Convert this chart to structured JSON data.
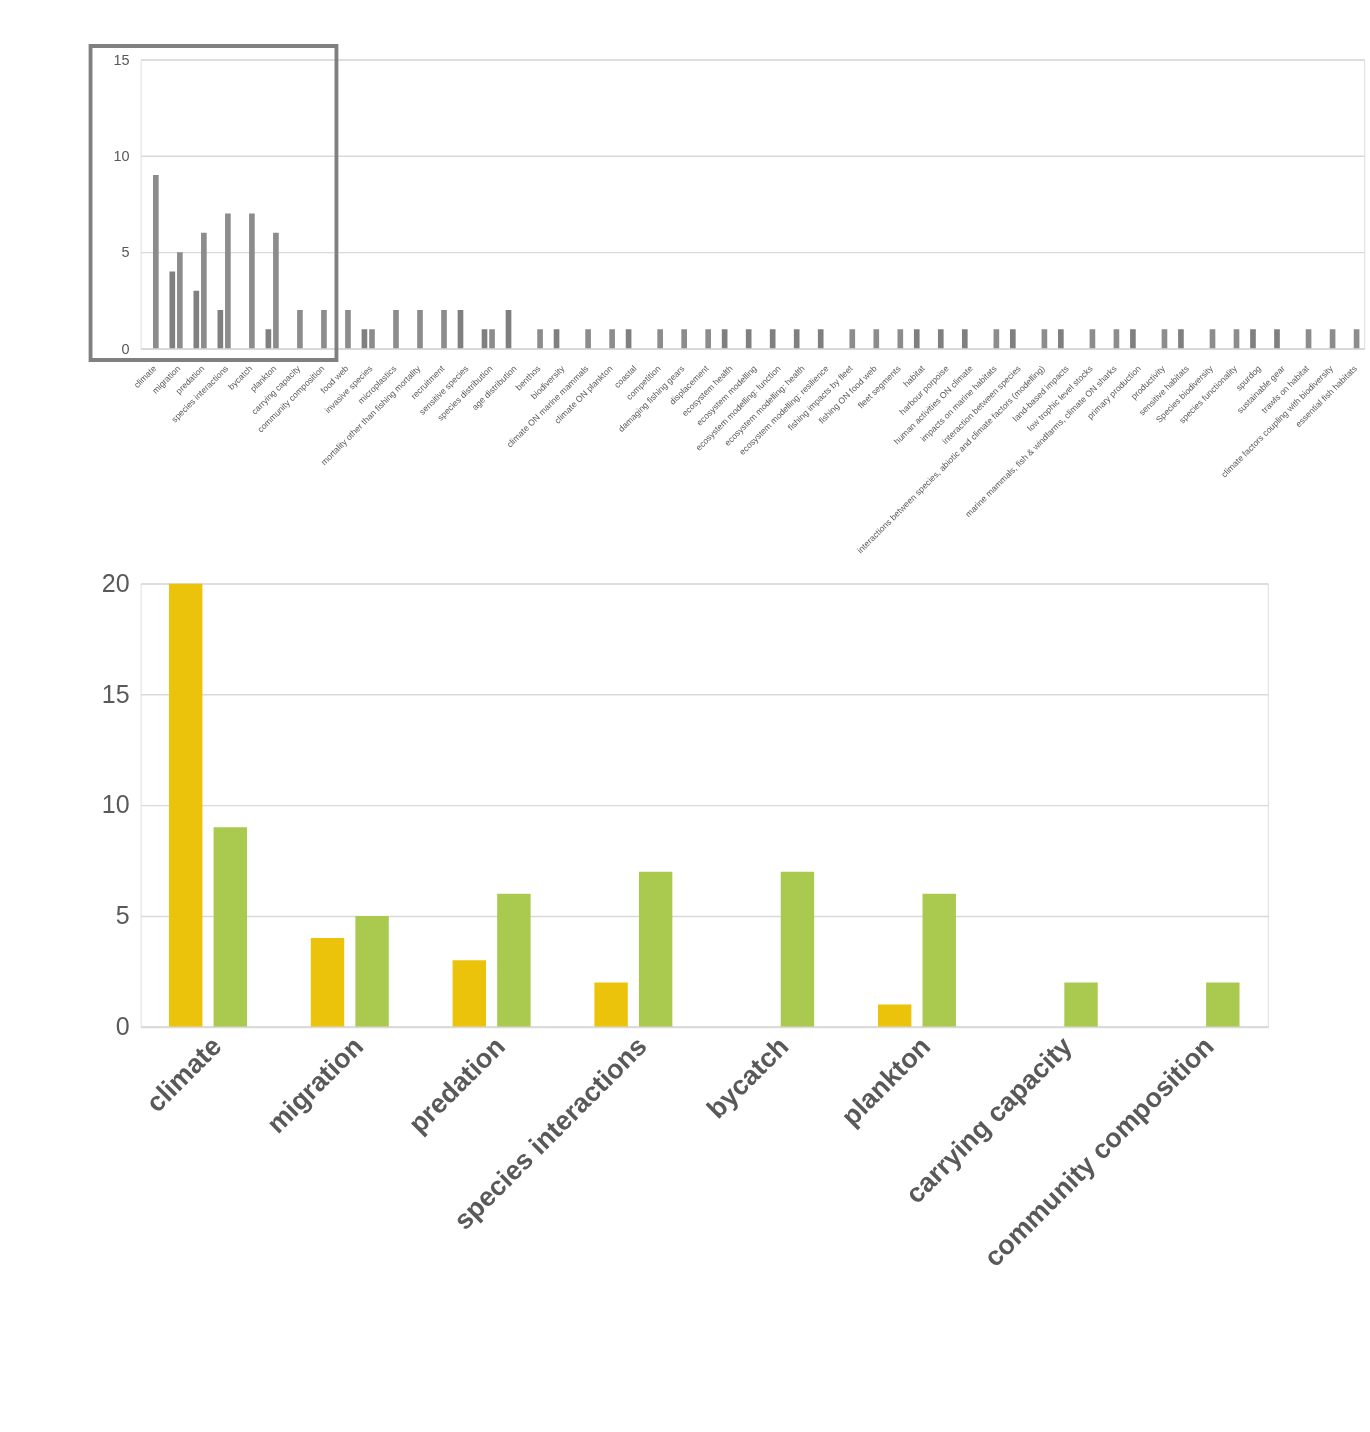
{
  "chart_data": [
    {
      "type": "bar",
      "categories": [
        "climate",
        "migration",
        "predation",
        "species interactions",
        "bycatch",
        "plankton",
        "carrying capacity",
        "community composition",
        "food web",
        "invasive species",
        "microplastics",
        "mortality other than fishing mortality",
        "recruitment",
        "sensitive species",
        "species distribution",
        "age distribution",
        "benthos",
        "biodiversity",
        "climate ON marine mammals",
        "climate ON plankton",
        "coastal",
        "competition",
        "damaging fishing gears",
        "displacement",
        "ecosystem health",
        "ecosystem modelling",
        "ecosystem modelling: function",
        "ecosystem modelling: health",
        "ecosystem modelling: resilience",
        "fishing impacts by fleet",
        "fishing ON food web",
        "fleet segments",
        "habitat",
        "harbour porpoise",
        "human activities ON climate",
        "impacts on marine habitats",
        "interaction between species",
        "interactions between species, abiotic and climate factors (modelling)",
        "land-based impacts",
        "low trophic level stocks",
        "marine mammals, fish & windfarms, climate ON sharks",
        "primary production",
        "productivity",
        "sensitive habitats",
        "Species biodiversity",
        "species functionality",
        "spurdog",
        "sustainable gear",
        "trawls on habitat",
        "climate factors coupling with biodiversity",
        "essential fish habitats"
      ],
      "series": [
        {
          "color": "#7f7f7f",
          "values": [
            null,
            4,
            3,
            2,
            null,
            1,
            null,
            null,
            null,
            1,
            null,
            null,
            null,
            2,
            1,
            2,
            null,
            1,
            null,
            null,
            1,
            null,
            null,
            null,
            1,
            1,
            1,
            1,
            1,
            null,
            null,
            null,
            1,
            1,
            1,
            null,
            1,
            null,
            1,
            null,
            null,
            1,
            null,
            1,
            null,
            null,
            1,
            1,
            null,
            null,
            null
          ]
        },
        {
          "color": "#8c8c8c",
          "values": [
            9,
            5,
            6,
            7,
            7,
            6,
            2,
            2,
            2,
            1,
            2,
            2,
            2,
            null,
            1,
            null,
            1,
            null,
            1,
            1,
            null,
            1,
            1,
            1,
            null,
            null,
            null,
            null,
            null,
            1,
            1,
            1,
            null,
            null,
            null,
            1,
            null,
            1,
            null,
            1,
            1,
            null,
            1,
            null,
            1,
            1,
            null,
            null,
            1,
            1,
            1
          ]
        }
      ],
      "ylim": [
        0,
        15
      ],
      "yticks": [
        0,
        5,
        10,
        15
      ],
      "grid": "y"
    },
    {
      "type": "bar",
      "categories": [
        "climate",
        "migration",
        "predation",
        "species interactions",
        "bycatch",
        "plankton",
        "carrying capacity",
        "community composition"
      ],
      "series": [
        {
          "color": "#ecc30b",
          "values": [
            20,
            4,
            3,
            2,
            null,
            1,
            null,
            null
          ]
        },
        {
          "color": "#a9c94f",
          "values": [
            9,
            5,
            6,
            7,
            7,
            6,
            2,
            2
          ]
        }
      ],
      "ylim": [
        0,
        20
      ],
      "yticks": [
        0,
        5,
        10,
        15,
        20
      ],
      "grid": "y"
    }
  ]
}
